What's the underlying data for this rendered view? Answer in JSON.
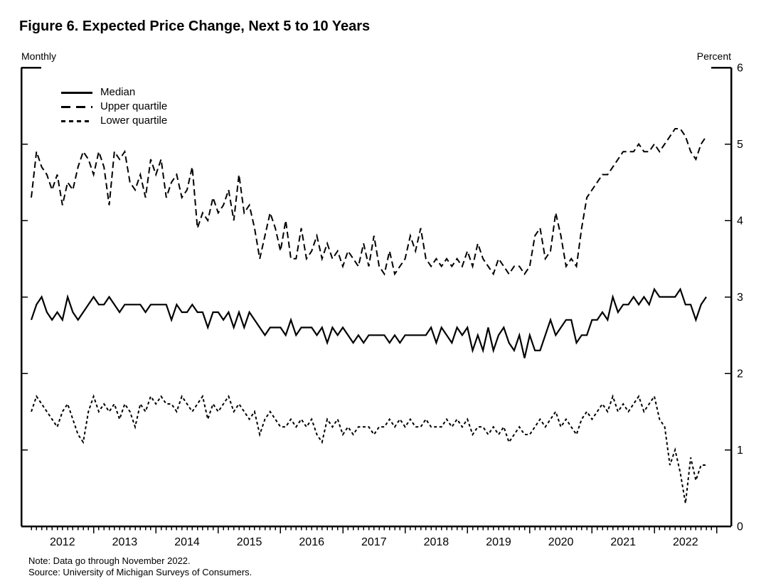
{
  "chart_data": {
    "type": "line",
    "title": "Figure 6. Expected Price Change, Next 5 to 10 Years",
    "frequency_label": "Monthly",
    "unit_label": "Percent",
    "note": "Note: Data go through November 2022.",
    "source": "Source: University of Michigan Surveys of Consumers.",
    "x_frequency": "monthly",
    "x_start": "2012-01",
    "x_end": "2022-11",
    "x_tick_years": [
      2012,
      2013,
      2014,
      2015,
      2016,
      2017,
      2018,
      2019,
      2020,
      2021,
      2022
    ],
    "ylim": [
      0,
      6
    ],
    "y_ticks": [
      0,
      1,
      2,
      3,
      4,
      5,
      6
    ],
    "grid": false,
    "legend_position": "top-left-inside",
    "line_color": "#000000",
    "series": [
      {
        "name": "Median",
        "line_style": "solid",
        "color": "#000000",
        "values": [
          2.7,
          2.9,
          3.0,
          2.8,
          2.7,
          2.8,
          2.7,
          3.0,
          2.8,
          2.7,
          2.8,
          2.9,
          3.0,
          2.9,
          2.9,
          3.0,
          2.9,
          2.8,
          2.9,
          2.9,
          2.9,
          2.9,
          2.8,
          2.9,
          2.9,
          2.9,
          2.9,
          2.7,
          2.9,
          2.8,
          2.8,
          2.9,
          2.8,
          2.8,
          2.6,
          2.8,
          2.8,
          2.7,
          2.8,
          2.6,
          2.8,
          2.6,
          2.8,
          2.7,
          2.6,
          2.5,
          2.6,
          2.6,
          2.6,
          2.5,
          2.7,
          2.5,
          2.6,
          2.6,
          2.6,
          2.5,
          2.6,
          2.4,
          2.6,
          2.5,
          2.6,
          2.5,
          2.4,
          2.5,
          2.4,
          2.5,
          2.5,
          2.5,
          2.5,
          2.4,
          2.5,
          2.4,
          2.5,
          2.5,
          2.5,
          2.5,
          2.5,
          2.6,
          2.4,
          2.6,
          2.5,
          2.4,
          2.6,
          2.5,
          2.6,
          2.3,
          2.5,
          2.3,
          2.6,
          2.3,
          2.5,
          2.6,
          2.4,
          2.3,
          2.5,
          2.2,
          2.5,
          2.3,
          2.3,
          2.5,
          2.7,
          2.5,
          2.6,
          2.7,
          2.7,
          2.4,
          2.5,
          2.5,
          2.7,
          2.7,
          2.8,
          2.7,
          3.0,
          2.8,
          2.9,
          2.9,
          3.0,
          2.9,
          3.0,
          2.9,
          3.1,
          3.0,
          3.0,
          3.0,
          3.0,
          3.1,
          2.9,
          2.9,
          2.7,
          2.9,
          3.0
        ]
      },
      {
        "name": "Upper quartile",
        "line_style": "long-dash",
        "color": "#000000",
        "values": [
          4.3,
          4.9,
          4.7,
          4.6,
          4.4,
          4.6,
          4.2,
          4.5,
          4.4,
          4.7,
          4.9,
          4.8,
          4.6,
          4.9,
          4.7,
          4.2,
          4.9,
          4.8,
          4.9,
          4.5,
          4.4,
          4.6,
          4.3,
          4.8,
          4.6,
          4.8,
          4.3,
          4.5,
          4.6,
          4.3,
          4.4,
          4.7,
          3.9,
          4.1,
          4.0,
          4.3,
          4.1,
          4.2,
          4.4,
          4.0,
          4.6,
          4.1,
          4.2,
          3.9,
          3.5,
          3.8,
          4.1,
          3.9,
          3.6,
          4.0,
          3.5,
          3.5,
          3.9,
          3.5,
          3.6,
          3.8,
          3.5,
          3.7,
          3.5,
          3.6,
          3.4,
          3.6,
          3.5,
          3.4,
          3.7,
          3.4,
          3.8,
          3.4,
          3.3,
          3.6,
          3.3,
          3.4,
          3.5,
          3.8,
          3.6,
          3.9,
          3.5,
          3.4,
          3.5,
          3.4,
          3.5,
          3.4,
          3.5,
          3.4,
          3.6,
          3.4,
          3.7,
          3.5,
          3.4,
          3.3,
          3.5,
          3.4,
          3.3,
          3.4,
          3.4,
          3.3,
          3.4,
          3.8,
          3.9,
          3.5,
          3.6,
          4.1,
          3.8,
          3.4,
          3.5,
          3.4,
          3.9,
          4.3,
          4.4,
          4.5,
          4.6,
          4.6,
          4.7,
          4.8,
          4.9,
          4.9,
          4.9,
          5.0,
          4.9,
          4.9,
          5.0,
          4.9,
          5.0,
          5.1,
          5.2,
          5.2,
          5.1,
          4.9,
          4.8,
          5.0,
          5.1
        ]
      },
      {
        "name": "Lower quartile",
        "line_style": "short-dash",
        "color": "#000000",
        "values": [
          1.5,
          1.7,
          1.6,
          1.5,
          1.4,
          1.3,
          1.5,
          1.6,
          1.4,
          1.2,
          1.1,
          1.5,
          1.7,
          1.5,
          1.6,
          1.5,
          1.6,
          1.4,
          1.6,
          1.5,
          1.3,
          1.6,
          1.5,
          1.7,
          1.6,
          1.7,
          1.6,
          1.6,
          1.5,
          1.7,
          1.6,
          1.5,
          1.6,
          1.7,
          1.4,
          1.6,
          1.5,
          1.6,
          1.7,
          1.5,
          1.6,
          1.5,
          1.4,
          1.5,
          1.2,
          1.4,
          1.5,
          1.4,
          1.3,
          1.3,
          1.4,
          1.3,
          1.4,
          1.3,
          1.4,
          1.2,
          1.1,
          1.4,
          1.3,
          1.4,
          1.2,
          1.3,
          1.2,
          1.3,
          1.3,
          1.3,
          1.2,
          1.3,
          1.3,
          1.4,
          1.3,
          1.4,
          1.3,
          1.4,
          1.3,
          1.3,
          1.4,
          1.3,
          1.3,
          1.3,
          1.4,
          1.3,
          1.4,
          1.3,
          1.4,
          1.2,
          1.3,
          1.3,
          1.2,
          1.3,
          1.2,
          1.3,
          1.1,
          1.2,
          1.3,
          1.2,
          1.2,
          1.3,
          1.4,
          1.3,
          1.4,
          1.5,
          1.3,
          1.4,
          1.3,
          1.2,
          1.4,
          1.5,
          1.4,
          1.5,
          1.6,
          1.5,
          1.7,
          1.5,
          1.6,
          1.5,
          1.6,
          1.7,
          1.5,
          1.6,
          1.7,
          1.4,
          1.3,
          0.8,
          1.0,
          0.7,
          0.3,
          0.9,
          0.6,
          0.8,
          0.8
        ]
      }
    ]
  }
}
